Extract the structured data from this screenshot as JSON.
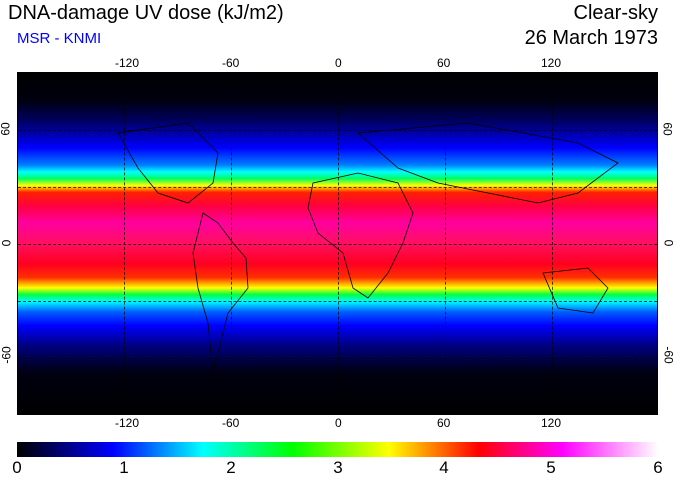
{
  "header": {
    "title": "DNA-damage UV dose (kJ/m2)",
    "subtitle": "MSR - KNMI",
    "condition": "Clear-sky",
    "date": "26 March 1973"
  },
  "map": {
    "lon_labels": [
      "-120",
      "-60",
      "0",
      "60",
      "120"
    ],
    "lat_labels": [
      "60",
      "0",
      "-60"
    ]
  },
  "colorbar": {
    "labels": [
      "0",
      "1",
      "2",
      "3",
      "4",
      "5",
      "6"
    ],
    "min": 0,
    "max": 6,
    "colors": [
      "#000000",
      "#0000ff",
      "#00ffff",
      "#00ff00",
      "#ffff00",
      "#ff0000",
      "#ff00ff",
      "#ffffff"
    ]
  }
}
